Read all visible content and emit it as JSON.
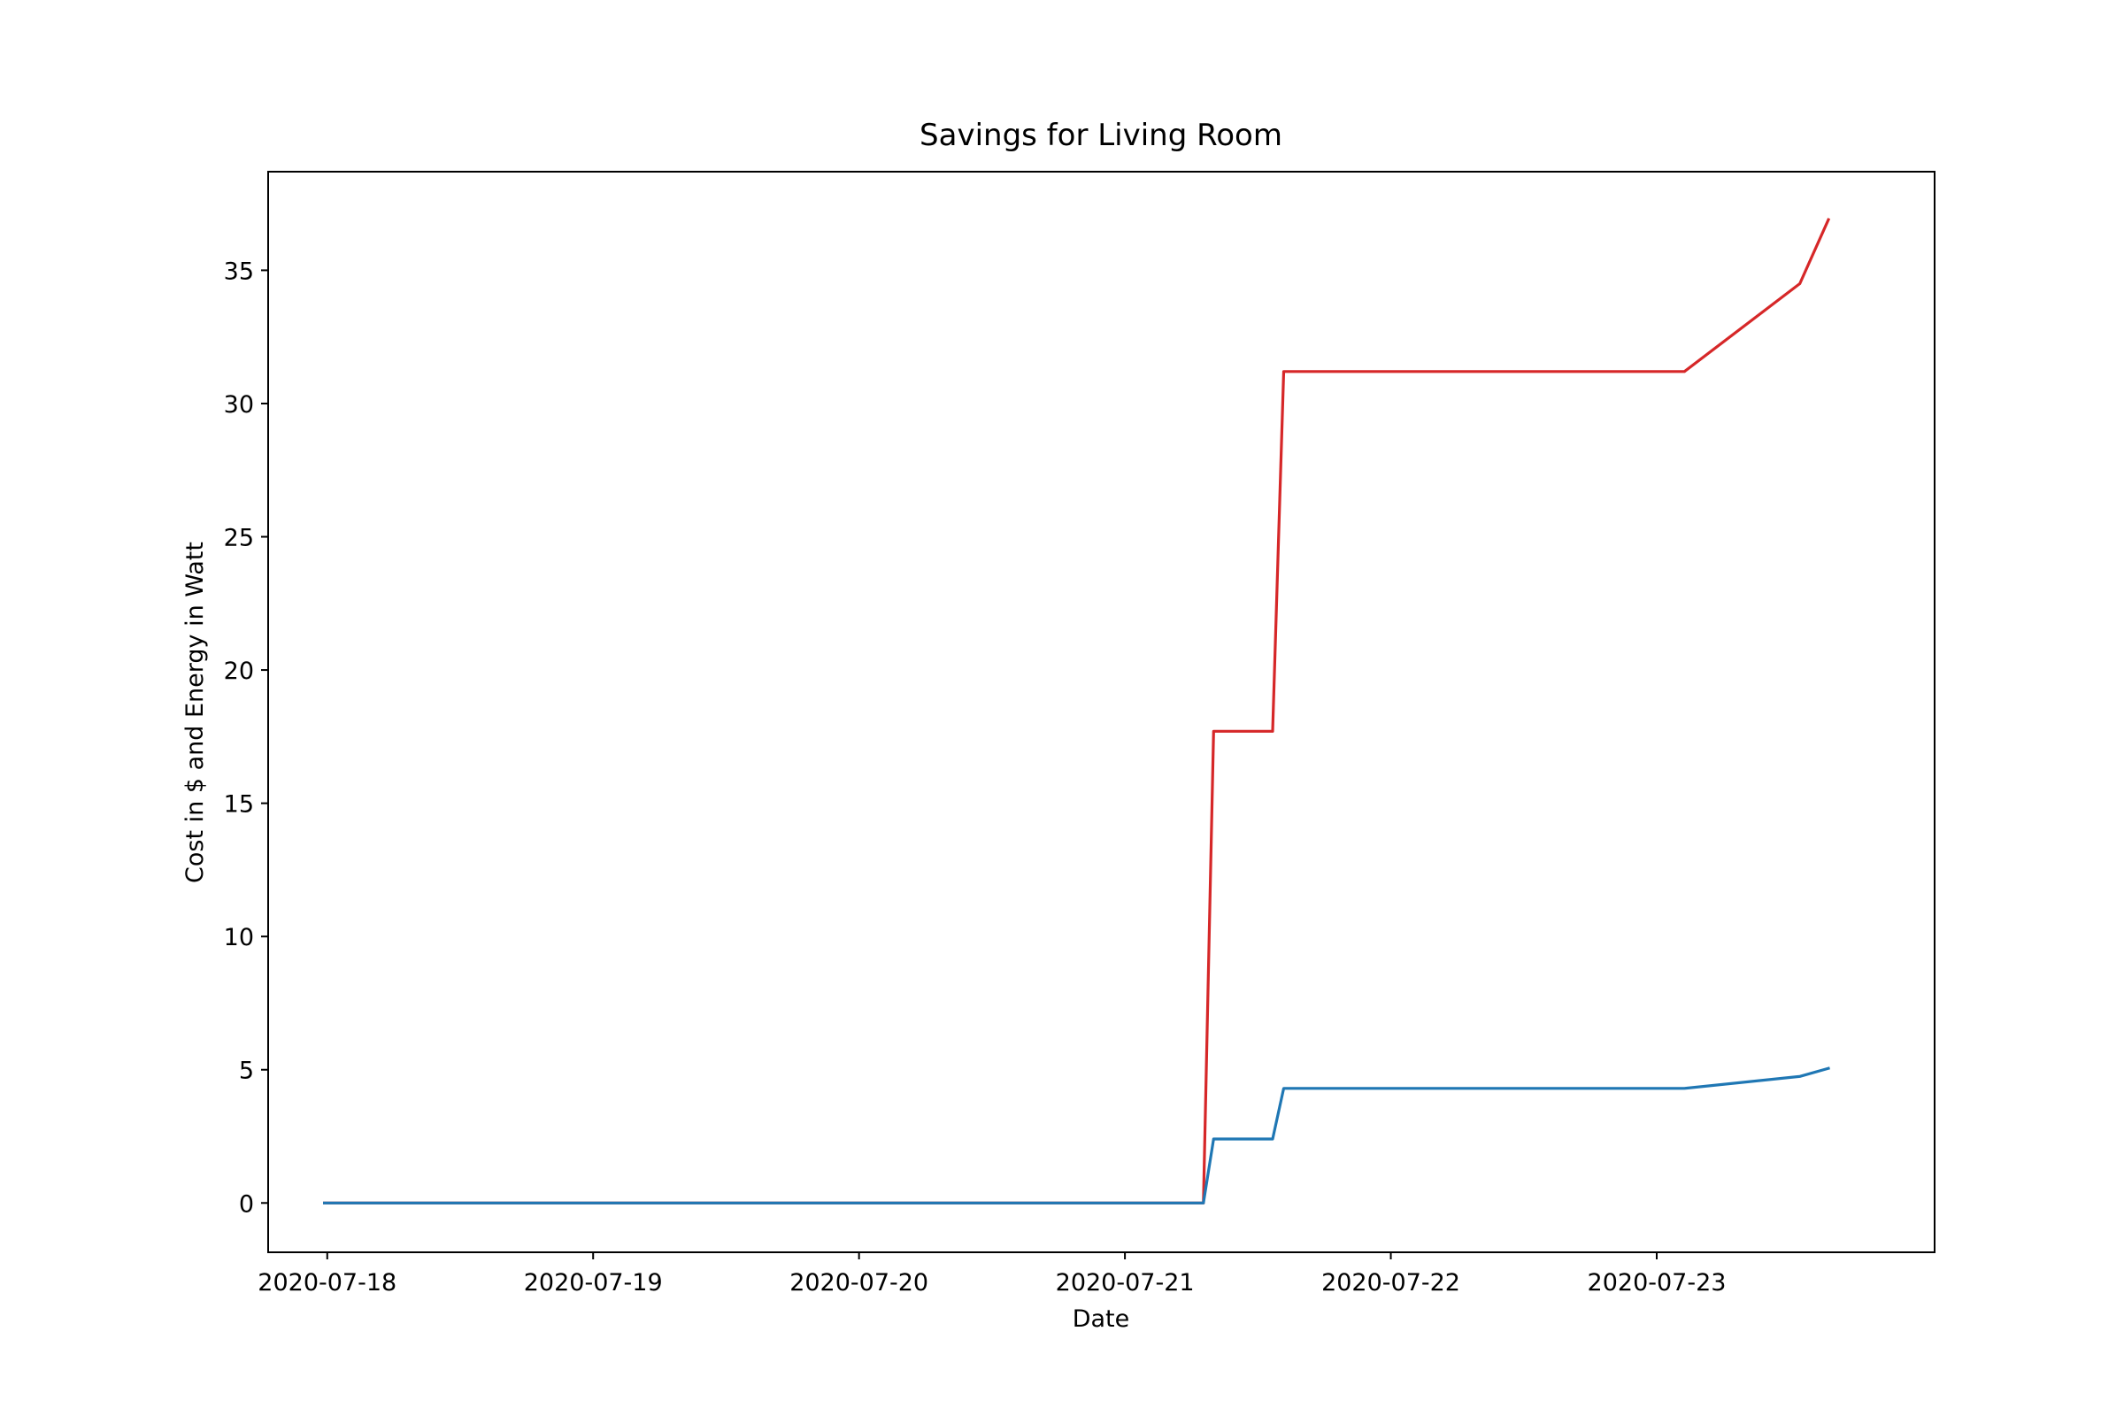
{
  "chart_data": {
    "type": "line",
    "title": "Savings for Living Room",
    "xlabel": "Date",
    "ylabel": "Cost in $ and Energy in Watt",
    "x_ticks": [
      "2020-07-18",
      "2020-07-19",
      "2020-07-20",
      "2020-07-21",
      "2020-07-22",
      "2020-07-23"
    ],
    "y_ticks": [
      0,
      5,
      10,
      15,
      20,
      25,
      30,
      35
    ],
    "xlim": [
      "2020-07-17T18:40",
      "2020-07-24T01:05"
    ],
    "ylim": [
      -1.85,
      38.7
    ],
    "grid": false,
    "legend": "none",
    "series": [
      {
        "color": "#d62728",
        "points": [
          [
            "2020-07-17T23:45",
            0
          ],
          [
            "2020-07-21T07:05",
            0
          ],
          [
            "2020-07-21T08:00",
            17.7
          ],
          [
            "2020-07-21T13:20",
            17.7
          ],
          [
            "2020-07-21T14:20",
            31.2
          ],
          [
            "2020-07-23T02:30",
            31.2
          ],
          [
            "2020-07-23T12:55",
            34.5
          ],
          [
            "2020-07-23T15:30",
            36.9
          ]
        ]
      },
      {
        "color": "#1f77b4",
        "points": [
          [
            "2020-07-17T23:45",
            0
          ],
          [
            "2020-07-21T07:05",
            0
          ],
          [
            "2020-07-21T08:00",
            2.4
          ],
          [
            "2020-07-21T13:20",
            2.4
          ],
          [
            "2020-07-21T14:20",
            4.3
          ],
          [
            "2020-07-23T02:30",
            4.3
          ],
          [
            "2020-07-23T12:55",
            4.75
          ],
          [
            "2020-07-23T15:30",
            5.05
          ]
        ]
      }
    ]
  }
}
